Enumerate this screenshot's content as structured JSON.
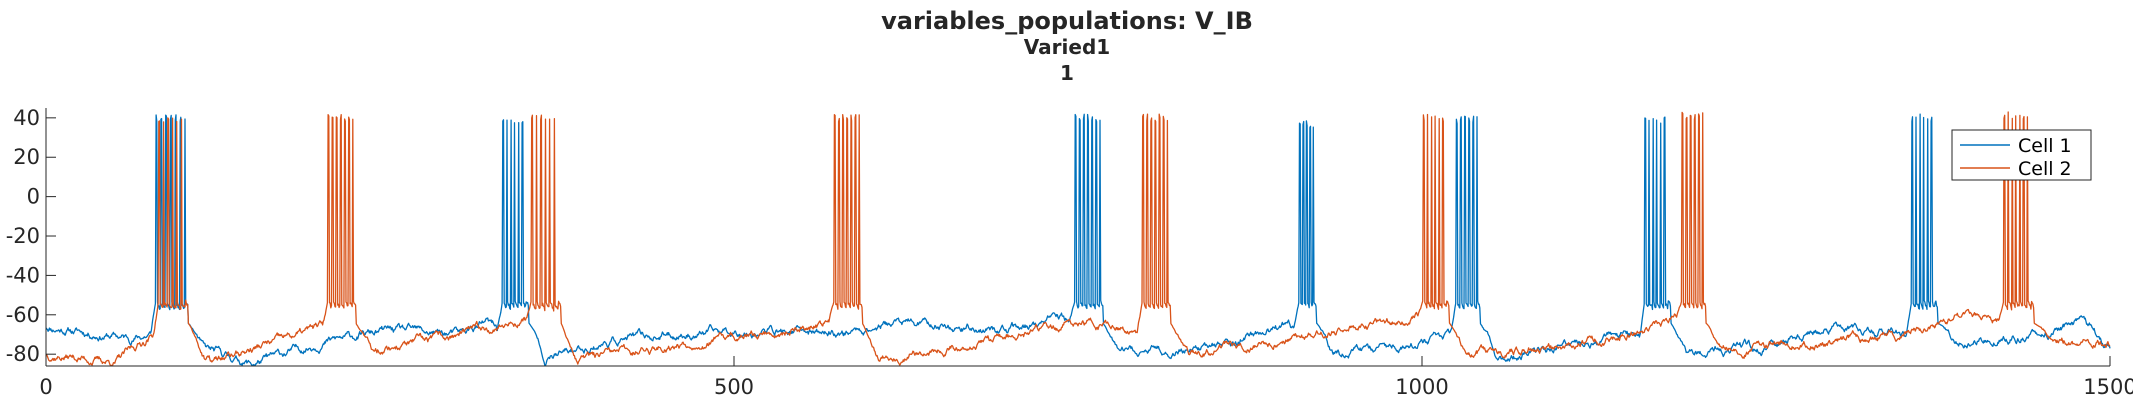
{
  "chart_data": {
    "type": "line",
    "title": "variables_populations: V_IB",
    "subtitle": [
      "Varied1",
      "1"
    ],
    "xlabel": "",
    "ylabel": "",
    "xlim": [
      0,
      1500
    ],
    "ylim": [
      -86,
      45
    ],
    "xticks": [
      0,
      500,
      1000,
      1500
    ],
    "yticks": [
      -80,
      -60,
      -40,
      -20,
      0,
      20,
      40
    ],
    "grid": false,
    "legend": {
      "position": "top-right"
    },
    "series": [
      {
        "name": "Cell 1",
        "color": "#0072BD",
        "seed": 11,
        "bursts": [
          {
            "t": 80,
            "n": 6,
            "isi": 3.5,
            "peak": 42
          },
          {
            "t": 332,
            "n": 6,
            "isi": 2.8,
            "peak": 41
          },
          {
            "t": 748,
            "n": 6,
            "isi": 3.0,
            "peak": 42
          },
          {
            "t": 911,
            "n": 4,
            "isi": 2.5,
            "peak": 39
          },
          {
            "t": 1025,
            "n": 5,
            "isi": 3.0,
            "peak": 41
          },
          {
            "t": 1162,
            "n": 6,
            "isi": 2.8,
            "peak": 41
          },
          {
            "t": 1356,
            "n": 6,
            "isi": 2.8,
            "peak": 42
          }
        ],
        "rest": [
          [
            0,
            -66
          ],
          [
            60,
            -72
          ],
          [
            78,
            -70
          ],
          [
            150,
            -85
          ],
          [
            200,
            -74
          ],
          [
            250,
            -68
          ],
          [
            300,
            -70
          ],
          [
            320,
            -64
          ],
          [
            362,
            -82
          ],
          [
            420,
            -72
          ],
          [
            500,
            -68
          ],
          [
            580,
            -69
          ],
          [
            620,
            -64
          ],
          [
            700,
            -68
          ],
          [
            740,
            -62
          ],
          [
            780,
            -80
          ],
          [
            850,
            -76
          ],
          [
            900,
            -66
          ],
          [
            940,
            -80
          ],
          [
            1000,
            -74
          ],
          [
            1030,
            -70
          ],
          [
            1060,
            -82
          ],
          [
            1100,
            -77
          ],
          [
            1150,
            -70
          ],
          [
            1190,
            -80
          ],
          [
            1250,
            -76
          ],
          [
            1300,
            -66
          ],
          [
            1350,
            -70
          ],
          [
            1390,
            -74
          ],
          [
            1460,
            -69
          ],
          [
            1480,
            -62
          ],
          [
            1500,
            -78
          ]
        ]
      },
      {
        "name": "Cell 2",
        "color": "#D95319",
        "seed": 37,
        "bursts": [
          {
            "t": 82,
            "n": 6,
            "isi": 3.2,
            "peak": 41
          },
          {
            "t": 205,
            "n": 6,
            "isi": 3.0,
            "peak": 42
          },
          {
            "t": 353,
            "n": 6,
            "isi": 3.2,
            "peak": 42
          },
          {
            "t": 573,
            "n": 6,
            "isi": 3.0,
            "peak": 42
          },
          {
            "t": 797,
            "n": 6,
            "isi": 3.0,
            "peak": 42
          },
          {
            "t": 1001,
            "n": 6,
            "isi": 2.8,
            "peak": 42
          },
          {
            "t": 1189,
            "n": 5,
            "isi": 3.0,
            "peak": 43
          },
          {
            "t": 1423,
            "n": 7,
            "isi": 2.8,
            "peak": 43
          }
        ],
        "rest": [
          [
            0,
            -80
          ],
          [
            50,
            -84
          ],
          [
            78,
            -70
          ],
          [
            120,
            -84
          ],
          [
            170,
            -73
          ],
          [
            200,
            -66
          ],
          [
            232,
            -78
          ],
          [
            290,
            -72
          ],
          [
            350,
            -62
          ],
          [
            380,
            -84
          ],
          [
            450,
            -76
          ],
          [
            520,
            -70
          ],
          [
            570,
            -64
          ],
          [
            600,
            -82
          ],
          [
            680,
            -74
          ],
          [
            750,
            -64
          ],
          [
            790,
            -68
          ],
          [
            830,
            -80
          ],
          [
            900,
            -72
          ],
          [
            960,
            -66
          ],
          [
            995,
            -60
          ],
          [
            1030,
            -80
          ],
          [
            1080,
            -78
          ],
          [
            1150,
            -70
          ],
          [
            1185,
            -62
          ],
          [
            1215,
            -78
          ],
          [
            1280,
            -74
          ],
          [
            1340,
            -70
          ],
          [
            1400,
            -60
          ],
          [
            1450,
            -72
          ],
          [
            1500,
            -76
          ]
        ]
      }
    ]
  }
}
